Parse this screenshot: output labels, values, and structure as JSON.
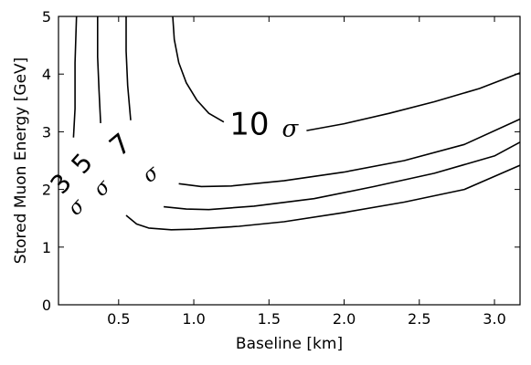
{
  "chart_data": {
    "type": "contour",
    "xlabel": "Baseline [km]",
    "ylabel": "Stored Muon Energy [GeV]",
    "xlim": [
      0.1,
      3.17
    ],
    "ylim": [
      0,
      5
    ],
    "x_ticks": [
      0.5,
      1.0,
      1.5,
      2.0,
      2.5,
      3.0
    ],
    "x_tick_labels": [
      "0.5",
      "1.0",
      "1.5",
      "2.0",
      "2.5",
      "3.0"
    ],
    "y_ticks": [
      0,
      1,
      2,
      3,
      4,
      5
    ],
    "y_tick_labels": [
      "0",
      "1",
      "2",
      "3",
      "4",
      "5"
    ],
    "grid": false,
    "levels": [
      {
        "number": "3",
        "sigma": "σ",
        "segments": [
          [
            [
              0.22,
              5.0
            ],
            [
              0.21,
              4.2
            ],
            [
              0.21,
              3.4
            ],
            [
              0.2,
              2.9
            ]
          ],
          [
            [
              0.55,
              1.55
            ],
            [
              0.62,
              1.4
            ],
            [
              0.7,
              1.33
            ],
            [
              0.85,
              1.3
            ],
            [
              1.0,
              1.31
            ],
            [
              1.3,
              1.36
            ],
            [
              1.6,
              1.44
            ],
            [
              2.0,
              1.6
            ],
            [
              2.4,
              1.78
            ],
            [
              2.8,
              2.0
            ],
            [
              3.17,
              2.42
            ]
          ]
        ]
      },
      {
        "number": "5",
        "sigma": "σ",
        "segments": [
          [
            [
              0.36,
              5.0
            ],
            [
              0.36,
              4.3
            ],
            [
              0.37,
              3.7
            ],
            [
              0.38,
              3.15
            ]
          ],
          [
            [
              0.8,
              1.7
            ],
            [
              0.95,
              1.66
            ],
            [
              1.1,
              1.65
            ],
            [
              1.4,
              1.71
            ],
            [
              1.8,
              1.84
            ],
            [
              2.2,
              2.05
            ],
            [
              2.6,
              2.28
            ],
            [
              3.0,
              2.58
            ],
            [
              3.17,
              2.82
            ]
          ]
        ]
      },
      {
        "number": "7",
        "sigma": "σ",
        "segments": [
          [
            [
              0.55,
              5.0
            ],
            [
              0.55,
              4.4
            ],
            [
              0.56,
              3.8
            ],
            [
              0.58,
              3.2
            ]
          ],
          [
            [
              0.9,
              2.1
            ],
            [
              1.05,
              2.05
            ],
            [
              1.25,
              2.06
            ],
            [
              1.6,
              2.15
            ],
            [
              2.0,
              2.3
            ],
            [
              2.4,
              2.5
            ],
            [
              2.8,
              2.78
            ],
            [
              3.17,
              3.22
            ]
          ]
        ]
      },
      {
        "number": "10",
        "sigma": "σ",
        "segments": [
          [
            [
              0.86,
              5.0
            ],
            [
              0.87,
              4.6
            ],
            [
              0.9,
              4.2
            ],
            [
              0.95,
              3.85
            ],
            [
              1.02,
              3.55
            ],
            [
              1.1,
              3.32
            ],
            [
              1.2,
              3.17
            ]
          ],
          [
            [
              1.75,
              3.02
            ],
            [
              2.0,
              3.14
            ],
            [
              2.3,
              3.32
            ],
            [
              2.6,
              3.52
            ],
            [
              2.9,
              3.75
            ],
            [
              3.17,
              4.02
            ]
          ]
        ]
      }
    ],
    "contour_labels": [
      {
        "number": "3",
        "sigma": "σ",
        "x": 0.16,
        "y": 2.0,
        "sigma_x": 0.25,
        "sigma_y": 1.62,
        "rotate": -48,
        "size": 28,
        "sigma_size": 22
      },
      {
        "number": "5",
        "sigma": "σ",
        "x": 0.3,
        "y": 2.35,
        "sigma_x": 0.42,
        "sigma_y": 1.95,
        "rotate": -48,
        "size": 28,
        "sigma_size": 22
      },
      {
        "number": "7",
        "sigma": "σ",
        "x": 0.55,
        "y": 2.65,
        "sigma_x": 0.74,
        "sigma_y": 2.18,
        "rotate": -40,
        "size": 30,
        "sigma_size": 22
      },
      {
        "number": "10",
        "sigma": "σ",
        "x": 1.37,
        "y": 2.95,
        "sigma_x": 1.64,
        "sigma_y": 2.92,
        "rotate": 0,
        "size": 34,
        "sigma_size": 26
      }
    ]
  }
}
